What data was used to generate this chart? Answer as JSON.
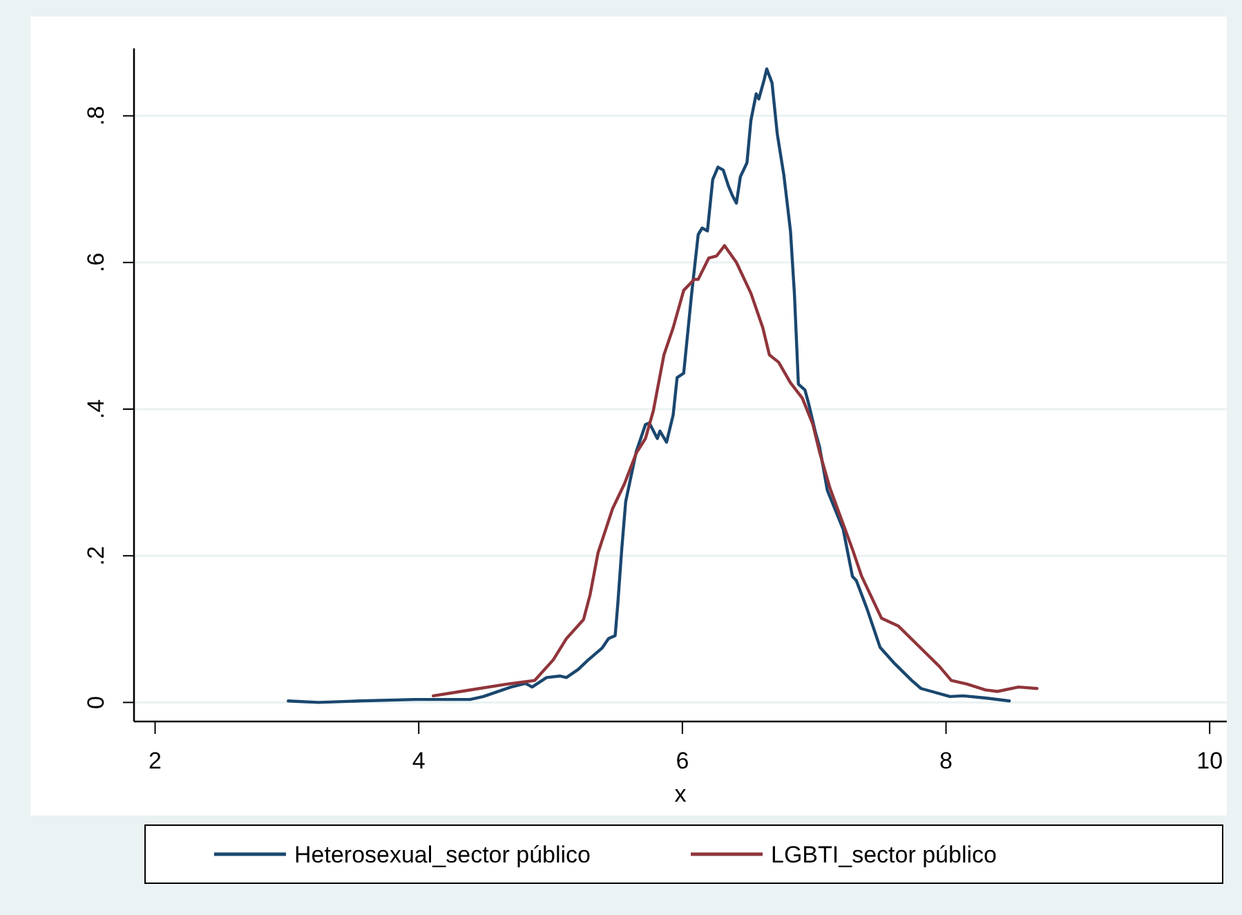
{
  "chart_data": {
    "type": "line",
    "xlabel": "x",
    "xlim": [
      1.84,
      10.13
    ],
    "xticks": [
      2,
      4,
      6,
      8,
      10
    ],
    "ylim": [
      -0.026,
      0.892
    ],
    "yticks": [
      {
        "value": 0,
        "label": "0"
      },
      {
        "value": 0.2,
        "label": ".2"
      },
      {
        "value": 0.4,
        "label": ".4"
      },
      {
        "value": 0.6,
        "label": ".6"
      },
      {
        "value": 0.8,
        "label": ".8"
      }
    ],
    "grid": "y",
    "legend": "bottom",
    "series": [
      {
        "name": "Heterosexual_sector público",
        "color": "#1a476f",
        "x": [
          3.01,
          3.24,
          3.55,
          3.97,
          4.39,
          4.49,
          4.7,
          4.81,
          4.86,
          4.97,
          5.07,
          5.12,
          5.21,
          5.28,
          5.39,
          5.44,
          5.49,
          5.51,
          5.54,
          5.57,
          5.65,
          5.72,
          5.75,
          5.81,
          5.83,
          5.88,
          5.93,
          5.96,
          6.01,
          6.07,
          6.12,
          6.15,
          6.19,
          6.23,
          6.27,
          6.31,
          6.35,
          6.38,
          6.41,
          6.44,
          6.49,
          6.52,
          6.56,
          6.58,
          6.62,
          6.64,
          6.68,
          6.72,
          6.77,
          6.82,
          6.85,
          6.88,
          6.93,
          6.96,
          7.01,
          7.04,
          7.1,
          7.22,
          7.29,
          7.32,
          7.4,
          7.5,
          7.61,
          7.74,
          7.81,
          8.03,
          8.13,
          8.3,
          8.48
        ],
        "values": [
          0.002,
          0,
          0.002,
          0.004,
          0.004,
          0.008,
          0.021,
          0.026,
          0.021,
          0.034,
          0.036,
          0.034,
          0.045,
          0.057,
          0.074,
          0.087,
          0.091,
          0.134,
          0.209,
          0.274,
          0.342,
          0.379,
          0.381,
          0.36,
          0.37,
          0.355,
          0.392,
          0.443,
          0.449,
          0.557,
          0.638,
          0.647,
          0.643,
          0.713,
          0.73,
          0.726,
          0.704,
          0.691,
          0.681,
          0.717,
          0.736,
          0.794,
          0.83,
          0.823,
          0.849,
          0.864,
          0.845,
          0.775,
          0.719,
          0.643,
          0.557,
          0.434,
          0.426,
          0.406,
          0.368,
          0.349,
          0.289,
          0.236,
          0.172,
          0.166,
          0.128,
          0.075,
          0.053,
          0.03,
          0.019,
          0.008,
          0.009,
          0.006,
          0.002
        ]
      },
      {
        "name": "LGBTI_sector público",
        "color": "#90353b",
        "x": [
          4.11,
          4.32,
          4.67,
          4.88,
          5.02,
          5.12,
          5.25,
          5.3,
          5.36,
          5.47,
          5.56,
          5.65,
          5.72,
          5.78,
          5.86,
          5.93,
          6.01,
          6.09,
          6.12,
          6.2,
          6.26,
          6.32,
          6.41,
          6.52,
          6.61,
          6.66,
          6.73,
          6.82,
          6.91,
          6.99,
          7.04,
          7.12,
          7.29,
          7.36,
          7.51,
          7.64,
          7.82,
          7.95,
          8.04,
          8.16,
          8.3,
          8.39,
          8.55,
          8.69
        ],
        "values": [
          0.009,
          0.015,
          0.025,
          0.03,
          0.058,
          0.087,
          0.113,
          0.147,
          0.204,
          0.264,
          0.298,
          0.34,
          0.36,
          0.398,
          0.474,
          0.511,
          0.562,
          0.577,
          0.577,
          0.606,
          0.609,
          0.623,
          0.6,
          0.558,
          0.511,
          0.474,
          0.464,
          0.436,
          0.415,
          0.379,
          0.342,
          0.292,
          0.209,
          0.172,
          0.115,
          0.104,
          0.072,
          0.049,
          0.03,
          0.025,
          0.017,
          0.015,
          0.021,
          0.019
        ]
      }
    ]
  }
}
